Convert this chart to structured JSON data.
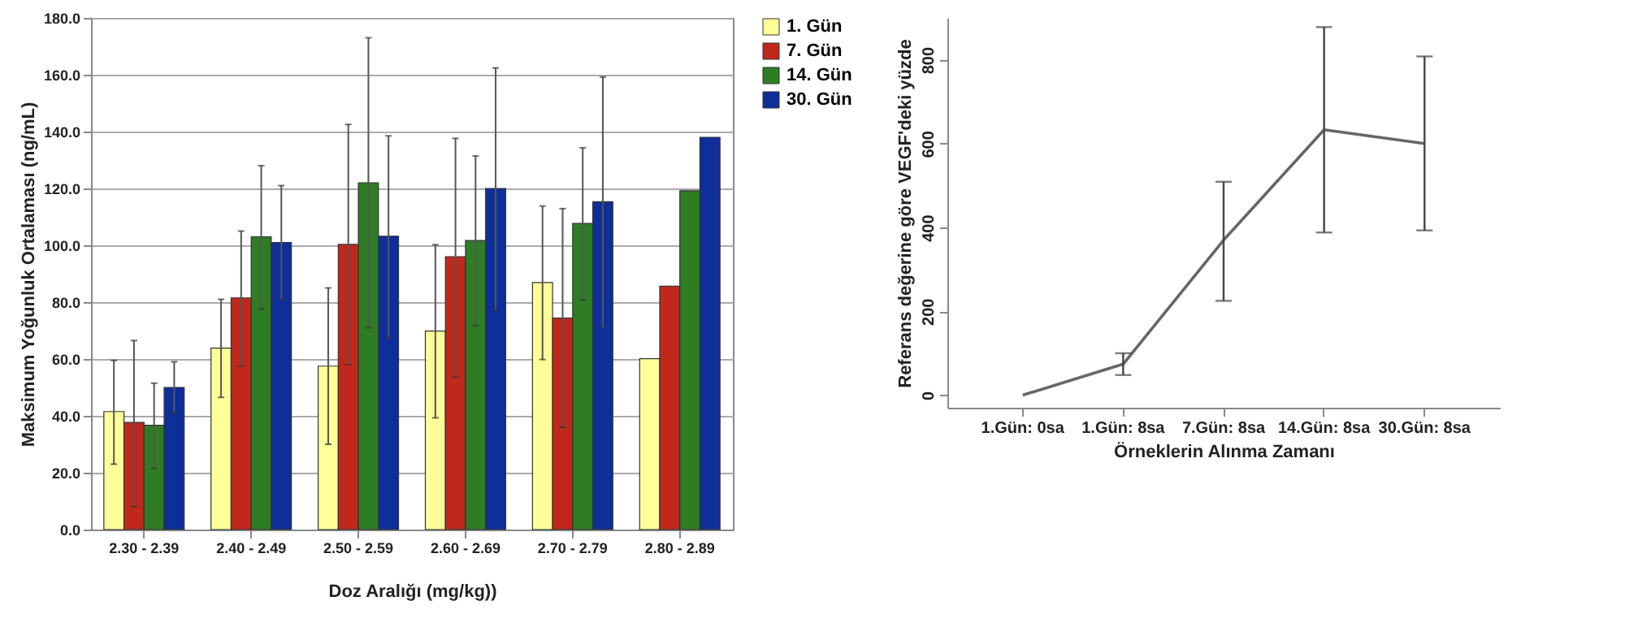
{
  "chart_data": [
    {
      "type": "bar",
      "xlabel": "Doz Aralığı (mg/kg))",
      "ylabel": "Maksimum Yoğunluk Ortalaması (ng/mL)",
      "categories": [
        "2.30 - 2.39",
        "2.40 - 2.49",
        "2.50 - 2.59",
        "2.60 - 2.69",
        "2.70 - 2.79",
        "2.80 - 2.89"
      ],
      "series": [
        {
          "name": "1. Gün",
          "color": "#ffff99",
          "values": [
            41.5,
            63.8,
            57.5,
            69.8,
            86.9,
            60.1
          ],
          "errors": [
            [
              23,
              59.5
            ],
            [
              46.5,
              81
            ],
            [
              30,
              85
            ],
            [
              39.3,
              100.2
            ],
            [
              59.8,
              113.8
            ],
            null
          ]
        },
        {
          "name": "7. Gün",
          "color": "#c0281c",
          "values": [
            37.7,
            81.5,
            100.3,
            96,
            74.4,
            85.6
          ],
          "errors": [
            [
              8,
              66.5
            ],
            [
              57.5,
              105
            ],
            [
              58,
              142.5
            ],
            [
              53.7,
              137.6
            ],
            [
              36,
              112.9
            ],
            null
          ]
        },
        {
          "name": "14. Gün",
          "color": "#2e7d24",
          "values": [
            36.7,
            103,
            122,
            101.7,
            107.7,
            119.2
          ],
          "errors": [
            [
              21.5,
              51.5
            ],
            [
              77.5,
              128
            ],
            [
              71,
              173
            ],
            [
              71.8,
              131.4
            ],
            [
              80.8,
              134.3
            ],
            null
          ]
        },
        {
          "name": "30. Gün",
          "color": "#0e2f9a",
          "values": [
            50,
            101,
            103.2,
            120,
            115.3,
            138
          ],
          "errors": [
            [
              41,
              59
            ],
            [
              81,
              121
            ],
            [
              67.5,
              138.5
            ],
            [
              77.1,
              162.4
            ],
            [
              71,
              159.2
            ],
            null
          ]
        }
      ],
      "ylim": [
        0,
        180
      ],
      "yticks": [
        {
          "value": 0,
          "label": "0.0"
        },
        {
          "value": 20,
          "label": "20.0"
        },
        {
          "value": 40,
          "label": "40.0"
        },
        {
          "value": 60,
          "label": "60.0"
        },
        {
          "value": 80,
          "label": "80.0"
        },
        {
          "value": 100,
          "label": "100.0"
        },
        {
          "value": 120,
          "label": "120.0"
        },
        {
          "value": 140,
          "label": "140.0"
        },
        {
          "value": 160,
          "label": "160.0"
        },
        {
          "value": 180,
          "label": "180.0"
        }
      ],
      "grid": "y",
      "legend": "right"
    },
    {
      "type": "line",
      "xlabel": "Örneklerin Alınma Zamanı",
      "ylabel": "Referans değerine göre VEGF'deki yüzde",
      "categories": [
        "1.Gün: 0sa",
        "1.Gün: 8sa",
        "7.Gün: 8sa",
        "14.Gün: 8sa",
        "30.Gün: 8sa"
      ],
      "series": [
        {
          "color": "#666666",
          "values": [
            0,
            74,
            370,
            633,
            600
          ],
          "errors": [
            null,
            [
              48,
              100
            ],
            [
              225,
              509
            ],
            [
              388,
              878
            ],
            [
              393,
              808
            ]
          ]
        }
      ],
      "ylim": [
        -30,
        900
      ],
      "yticks": [
        0,
        200,
        400,
        600,
        800
      ],
      "grid": false,
      "legend": false,
      "marker": "none",
      "line_style": "solid"
    }
  ]
}
